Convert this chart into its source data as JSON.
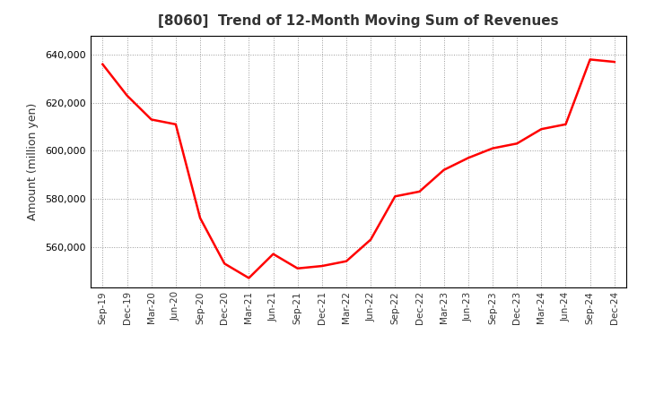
{
  "title": "[8060]  Trend of 12-Month Moving Sum of Revenues",
  "ylabel": "Amount (million yen)",
  "line_color": "#FF0000",
  "line_width": 1.8,
  "background_color": "#FFFFFF",
  "grid_color": "#999999",
  "ylim": [
    543000,
    648000
  ],
  "yticks": [
    560000,
    580000,
    600000,
    620000,
    640000
  ],
  "labels": [
    "Sep-19",
    "Dec-19",
    "Mar-20",
    "Jun-20",
    "Sep-20",
    "Dec-20",
    "Mar-21",
    "Jun-21",
    "Sep-21",
    "Dec-21",
    "Mar-22",
    "Jun-22",
    "Sep-22",
    "Dec-22",
    "Mar-23",
    "Jun-23",
    "Sep-23",
    "Dec-23",
    "Mar-24",
    "Jun-24",
    "Sep-24",
    "Dec-24"
  ],
  "values": [
    636000,
    623000,
    613000,
    611000,
    572000,
    553000,
    547000,
    557000,
    551000,
    552000,
    554000,
    563000,
    581000,
    583000,
    592000,
    597000,
    601000,
    603000,
    609000,
    611000,
    638000,
    637000
  ]
}
